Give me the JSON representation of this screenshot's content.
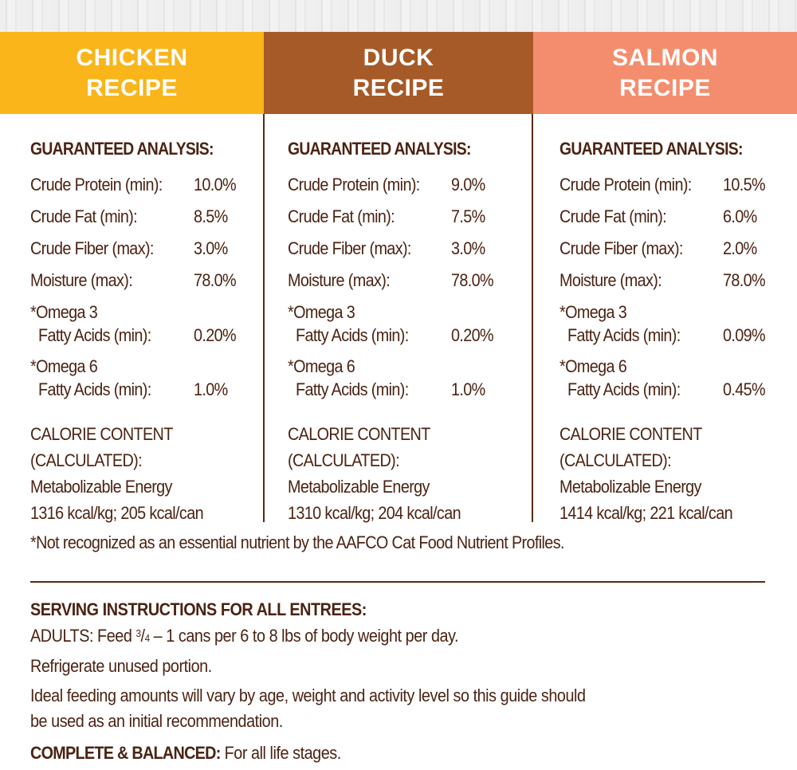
{
  "colors": {
    "chicken": "#F9B51A",
    "duck": "#A65A28",
    "salmon": "#F48D6E",
    "text": "#4B2313"
  },
  "recipes": [
    {
      "title_line1": "CHICKEN",
      "title_line2": "RECIPE",
      "analysis_heading": "GUARANTEED ANALYSIS:",
      "rows": [
        {
          "label": "Crude Protein (min):",
          "value": "10.0%"
        },
        {
          "label": "Crude Fat (min):",
          "value": "8.5%"
        },
        {
          "label": "Crude Fiber (max):",
          "value": "3.0%"
        },
        {
          "label": "Moisture (max):",
          "value": "78.0%"
        }
      ],
      "omega3_line1": "*Omega 3",
      "omega3_line2": "Fatty Acids (min):",
      "omega3_value": "0.20%",
      "omega6_line1": "*Omega 6",
      "omega6_line2": "Fatty Acids (min):",
      "omega6_value": "1.0%",
      "calorie": [
        "CALORIE CONTENT",
        "(CALCULATED):",
        "Metabolizable Energy",
        "1316 kcal/kg; 205 kcal/can"
      ]
    },
    {
      "title_line1": "DUCK",
      "title_line2": "RECIPE",
      "analysis_heading": "GUARANTEED ANALYSIS:",
      "rows": [
        {
          "label": "Crude Protein (min):",
          "value": "9.0%"
        },
        {
          "label": "Crude Fat (min):",
          "value": "7.5%"
        },
        {
          "label": "Crude Fiber (max):",
          "value": "3.0%"
        },
        {
          "label": "Moisture (max):",
          "value": "78.0%"
        }
      ],
      "omega3_line1": "*Omega 3",
      "omega3_line2": "Fatty Acids (min):",
      "omega3_value": "0.20%",
      "omega6_line1": "*Omega 6",
      "omega6_line2": "Fatty Acids (min):",
      "omega6_value": "1.0%",
      "calorie": [
        "CALORIE CONTENT",
        "(CALCULATED):",
        "Metabolizable Energy",
        "1310 kcal/kg; 204 kcal/can"
      ]
    },
    {
      "title_line1": "SALMON",
      "title_line2": "RECIPE",
      "analysis_heading": "GUARANTEED ANALYSIS:",
      "rows": [
        {
          "label": "Crude Protein (min):",
          "value": "10.5%"
        },
        {
          "label": "Crude Fat (min):",
          "value": "6.0%"
        },
        {
          "label": "Crude Fiber (max):",
          "value": "2.0%"
        },
        {
          "label": "Moisture (max):",
          "value": "78.0%"
        }
      ],
      "omega3_line1": "*Omega 3",
      "omega3_line2": "Fatty Acids (min):",
      "omega3_value": "0.09%",
      "omega6_line1": "*Omega 6",
      "omega6_line2": "Fatty Acids (min):",
      "omega6_value": "0.45%",
      "calorie": [
        "CALORIE CONTENT",
        "(CALCULATED):",
        "Metabolizable Energy",
        "1414 kcal/kg; 221 kcal/can"
      ]
    }
  ],
  "footnote": "*Not recognized as an essential nutrient by the AAFCO Cat Food Nutrient Profiles.",
  "serving": {
    "heading": "SERVING INSTRUCTIONS FOR ALL ENTREES:",
    "adults_prefix": "ADULTS: Feed ",
    "adults_fraction_num": "3",
    "adults_fraction_den": "4",
    "adults_suffix": " – 1 cans per 6 to 8 lbs of body weight per day.",
    "refrigerate": "Refrigerate unused portion.",
    "ideal_line1": "Ideal feeding amounts will vary by age, weight and activity level so this guide should",
    "ideal_line2": "be used as an initial recommendation.",
    "complete_label": "COMPLETE & BALANCED:",
    "complete_text": " For all life stages."
  }
}
